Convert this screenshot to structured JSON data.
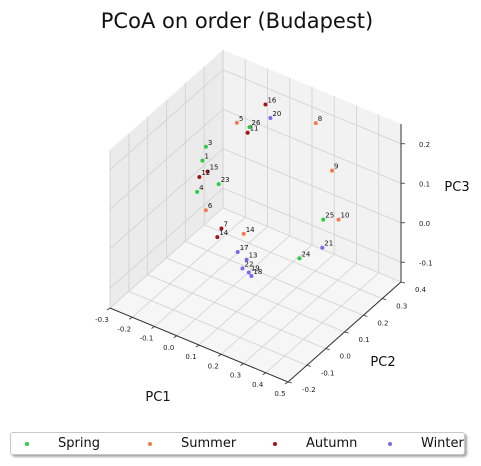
{
  "chart_data": {
    "type": "scatter",
    "title": "PCoA on order (Budapest)",
    "xlabel": "PC1",
    "ylabel": "PC2",
    "zlabel": "PC3",
    "xlim": [
      -0.3,
      0.5
    ],
    "ylim": [
      -0.2,
      0.4
    ],
    "zlim": [
      -0.15,
      0.25
    ],
    "xticks": [
      "-0.3",
      "-0.2",
      "-0.1",
      "0.0",
      "0.1",
      "0.2",
      "0.3",
      "0.4",
      "0.5"
    ],
    "yticks": [
      "-0.2",
      "-0.1",
      "0.0",
      "0.1",
      "0.2",
      "0.3",
      "0.4"
    ],
    "zticks": [
      "-0.1",
      "0.0",
      "0.1",
      "0.2"
    ],
    "grid": true,
    "legend_position": "bottom",
    "series": [
      {
        "name": "Spring",
        "color": "#2ecc40",
        "points": [
          {
            "label": "3",
            "x": -0.25,
            "y": 0.25,
            "z": 0.08
          },
          {
            "label": "1",
            "x": -0.24,
            "y": 0.22,
            "z": 0.06
          },
          {
            "label": "4",
            "x": -0.23,
            "y": 0.18,
            "z": 0.0
          },
          {
            "label": "23",
            "x": -0.15,
            "y": 0.2,
            "z": 0.03
          },
          {
            "label": "26",
            "x": -0.13,
            "y": 0.34,
            "z": 0.12
          },
          {
            "label": "25",
            "x": 0.32,
            "y": 0.2,
            "z": 0.05
          },
          {
            "label": "24",
            "x": 0.34,
            "y": 0.05,
            "z": 0.02
          }
        ]
      },
      {
        "name": "Summer",
        "color": "#f47a50",
        "points": [
          {
            "label": "5",
            "x": -0.17,
            "y": 0.32,
            "z": 0.13
          },
          {
            "label": "6",
            "x": -0.14,
            "y": 0.12,
            "z": 0.0
          },
          {
            "label": "8",
            "x": 0.1,
            "y": 0.42,
            "z": 0.15
          },
          {
            "label": "9",
            "x": 0.3,
            "y": 0.27,
            "z": 0.14
          },
          {
            "label": "10",
            "x": 0.38,
            "y": 0.21,
            "z": 0.06
          },
          {
            "label": "14",
            "x": 0.03,
            "y": 0.12,
            "z": -0.02
          }
        ]
      },
      {
        "name": "Autumn",
        "color": "#a31515",
        "points": [
          {
            "label": "16",
            "x": -0.05,
            "y": 0.33,
            "z": 0.2
          },
          {
            "label": "11",
            "x": -0.13,
            "y": 0.33,
            "z": 0.11
          },
          {
            "label": "15",
            "x": -0.2,
            "y": 0.2,
            "z": 0.05
          },
          {
            "label": "12",
            "x": -0.22,
            "y": 0.18,
            "z": 0.04
          },
          {
            "label": "7",
            "x": -0.07,
            "y": 0.12,
            "z": -0.03
          },
          {
            "label": "14",
            "x": -0.08,
            "y": 0.11,
            "z": -0.05
          }
        ]
      },
      {
        "name": "Winter",
        "color": "#7b68ee",
        "points": [
          {
            "label": "20",
            "x": -0.07,
            "y": 0.38,
            "z": 0.14
          },
          {
            "label": "17",
            "x": 0.02,
            "y": 0.1,
            "z": -0.06
          },
          {
            "label": "13",
            "x": 0.06,
            "y": 0.1,
            "z": -0.07
          },
          {
            "label": "19",
            "x": 0.07,
            "y": 0.1,
            "z": -0.1
          },
          {
            "label": "18",
            "x": 0.09,
            "y": 0.09,
            "z": -0.1
          },
          {
            "label": "22",
            "x": 0.05,
            "y": 0.09,
            "z": -0.09
          },
          {
            "label": "21",
            "x": 0.4,
            "y": 0.1,
            "z": 0.04
          }
        ]
      }
    ]
  }
}
